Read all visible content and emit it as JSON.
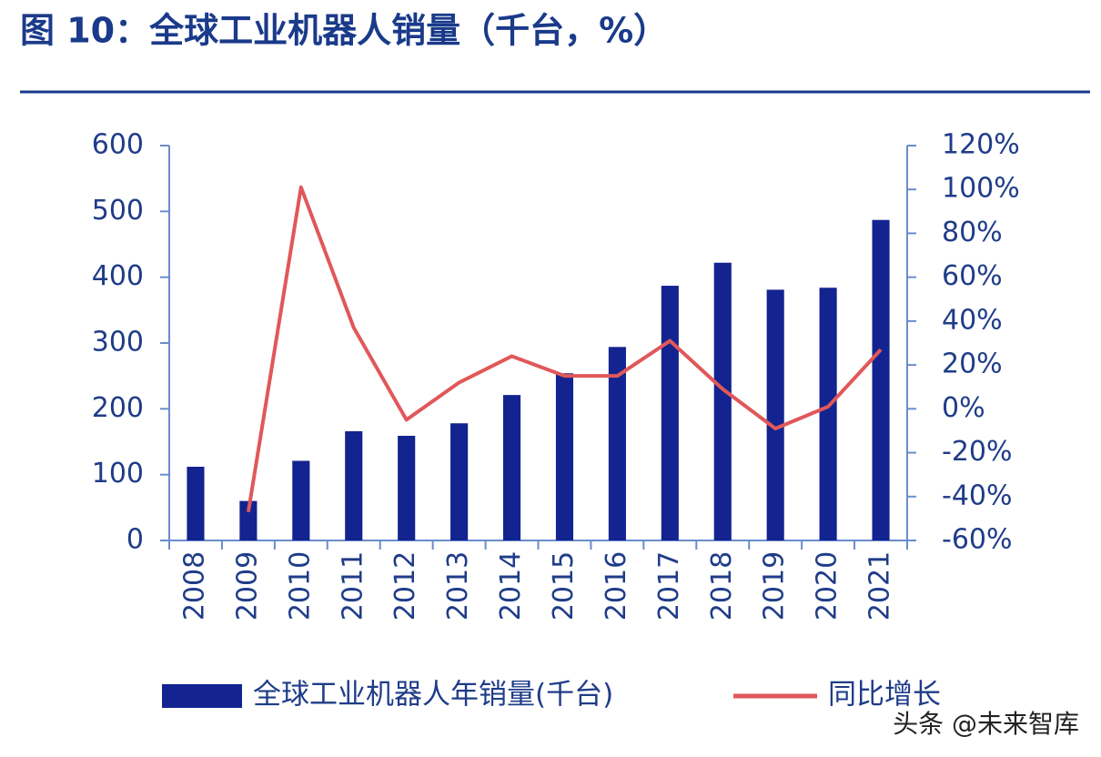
{
  "chart_data": {
    "type": "bar_line",
    "title": "图 10：全球工业机器人销量（千台，%）",
    "categories": [
      "2008",
      "2009",
      "2010",
      "2011",
      "2012",
      "2013",
      "2014",
      "2015",
      "2016",
      "2017",
      "2018",
      "2019",
      "2020",
      "2021"
    ],
    "series": [
      {
        "name": "全球工业机器人年销量(千台)",
        "type": "bar",
        "color": "#13238f",
        "axis": "y",
        "values": [
          112,
          60,
          121,
          166,
          159,
          178,
          221,
          254,
          294,
          387,
          422,
          381,
          384,
          487
        ]
      },
      {
        "name": "同比增长",
        "type": "line",
        "color": "#e0585a",
        "axis": "y2",
        "values": [
          null,
          -47,
          101,
          37,
          -5,
          12,
          24,
          15,
          15,
          31,
          9,
          -9,
          1,
          27
        ]
      }
    ],
    "ylim": [
      0,
      600
    ],
    "yticks": [
      0,
      100,
      200,
      300,
      400,
      500,
      600
    ],
    "y2lim": [
      -60,
      120
    ],
    "y2ticks": [
      {
        "value": -60,
        "label": "-60%"
      },
      {
        "value": -40,
        "label": "-40%"
      },
      {
        "value": -20,
        "label": "-20%"
      },
      {
        "value": 0,
        "label": "0%"
      },
      {
        "value": 20,
        "label": "20%"
      },
      {
        "value": 40,
        "label": "40%"
      },
      {
        "value": 60,
        "label": "60%"
      },
      {
        "value": 80,
        "label": "80%"
      },
      {
        "value": 100,
        "label": "100%"
      },
      {
        "value": 120,
        "label": "120%"
      }
    ],
    "watermark": "头条 @未来智库"
  }
}
